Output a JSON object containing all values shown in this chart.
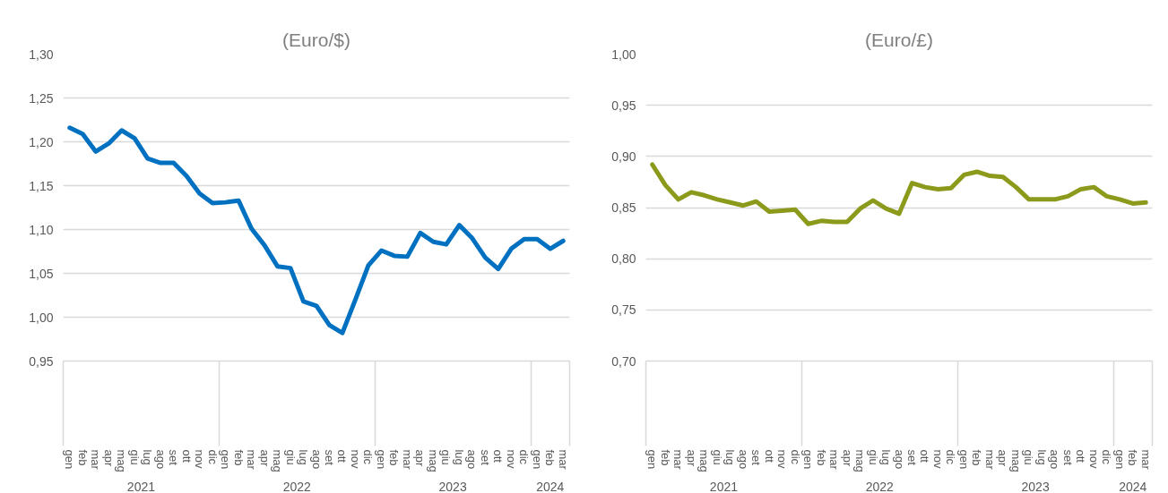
{
  "chart_data": [
    {
      "type": "line",
      "title": "(Euro/$)",
      "categories": [
        "gen",
        "feb",
        "mar",
        "apr",
        "mag",
        "giu",
        "lug",
        "ago",
        "set",
        "ott",
        "nov",
        "dic",
        "gen",
        "feb",
        "mar",
        "apr",
        "mag",
        "giu",
        "lug",
        "ago",
        "set",
        "ott",
        "nov",
        "dic",
        "gen",
        "feb",
        "mar",
        "apr",
        "mag",
        "giu",
        "lug",
        "ago",
        "set",
        "ott",
        "nov",
        "dic",
        "gen",
        "feb",
        "mar"
      ],
      "series": [
        {
          "color": "#0070c0",
          "values": [
            1.216,
            1.209,
            1.189,
            1.198,
            1.213,
            1.204,
            1.181,
            1.176,
            1.176,
            1.161,
            1.141,
            1.13,
            1.131,
            1.133,
            1.101,
            1.082,
            1.058,
            1.056,
            1.018,
            1.013,
            0.991,
            0.982,
            1.02,
            1.059,
            1.076,
            1.07,
            1.069,
            1.096,
            1.086,
            1.083,
            1.105,
            1.09,
            1.068,
            1.055,
            1.078,
            1.089,
            1.089,
            1.078,
            1.087
          ]
        }
      ],
      "ylim": [
        0.95,
        1.3
      ],
      "yticks": [
        {
          "value": 0.95,
          "label": "0,95"
        },
        {
          "value": 1.0,
          "label": "1,00"
        },
        {
          "value": 1.05,
          "label": "1,05"
        },
        {
          "value": 1.1,
          "label": "1,10"
        },
        {
          "value": 1.15,
          "label": "1,15"
        },
        {
          "value": 1.2,
          "label": "1,20"
        },
        {
          "value": 1.25,
          "label": "1,25"
        },
        {
          "value": 1.3,
          "label": "1,30"
        }
      ],
      "grid": "y",
      "annotations": [
        "2021",
        "2022",
        "2023",
        "2024"
      ]
    },
    {
      "type": "line",
      "title": "(Euro/£)",
      "categories": [
        "gen",
        "feb",
        "mar",
        "apr",
        "mag",
        "giu",
        "lug",
        "ago",
        "set",
        "ott",
        "nov",
        "dic",
        "gen",
        "feb",
        "mar",
        "apr",
        "mag",
        "giu",
        "lug",
        "ago",
        "set",
        "ott",
        "nov",
        "dic",
        "gen",
        "feb",
        "mar",
        "apr",
        "mag",
        "giu",
        "lug",
        "ago",
        "set",
        "ott",
        "nov",
        "dic",
        "gen",
        "feb",
        "mar"
      ],
      "series": [
        {
          "color": "#8c9a1c",
          "values": [
            0.892,
            0.872,
            0.858,
            0.865,
            0.862,
            0.858,
            0.855,
            0.852,
            0.856,
            0.846,
            0.847,
            0.848,
            0.834,
            0.837,
            0.836,
            0.836,
            0.849,
            0.857,
            0.849,
            0.844,
            0.874,
            0.87,
            0.868,
            0.869,
            0.882,
            0.885,
            0.881,
            0.88,
            0.87,
            0.858,
            0.858,
            0.858,
            0.861,
            0.868,
            0.87,
            0.861,
            0.858,
            0.854,
            0.855
          ]
        }
      ],
      "ylim": [
        0.7,
        1.0
      ],
      "yticks": [
        {
          "value": 0.7,
          "label": "0,70"
        },
        {
          "value": 0.75,
          "label": "0,75"
        },
        {
          "value": 0.8,
          "label": "0,80"
        },
        {
          "value": 0.85,
          "label": "0,85"
        },
        {
          "value": 0.9,
          "label": "0,90"
        },
        {
          "value": 0.95,
          "label": "0,95"
        },
        {
          "value": 1.0,
          "label": "1,00"
        }
      ],
      "grid": "y",
      "annotations": [
        "2021",
        "2022",
        "2023",
        "2024"
      ]
    }
  ]
}
